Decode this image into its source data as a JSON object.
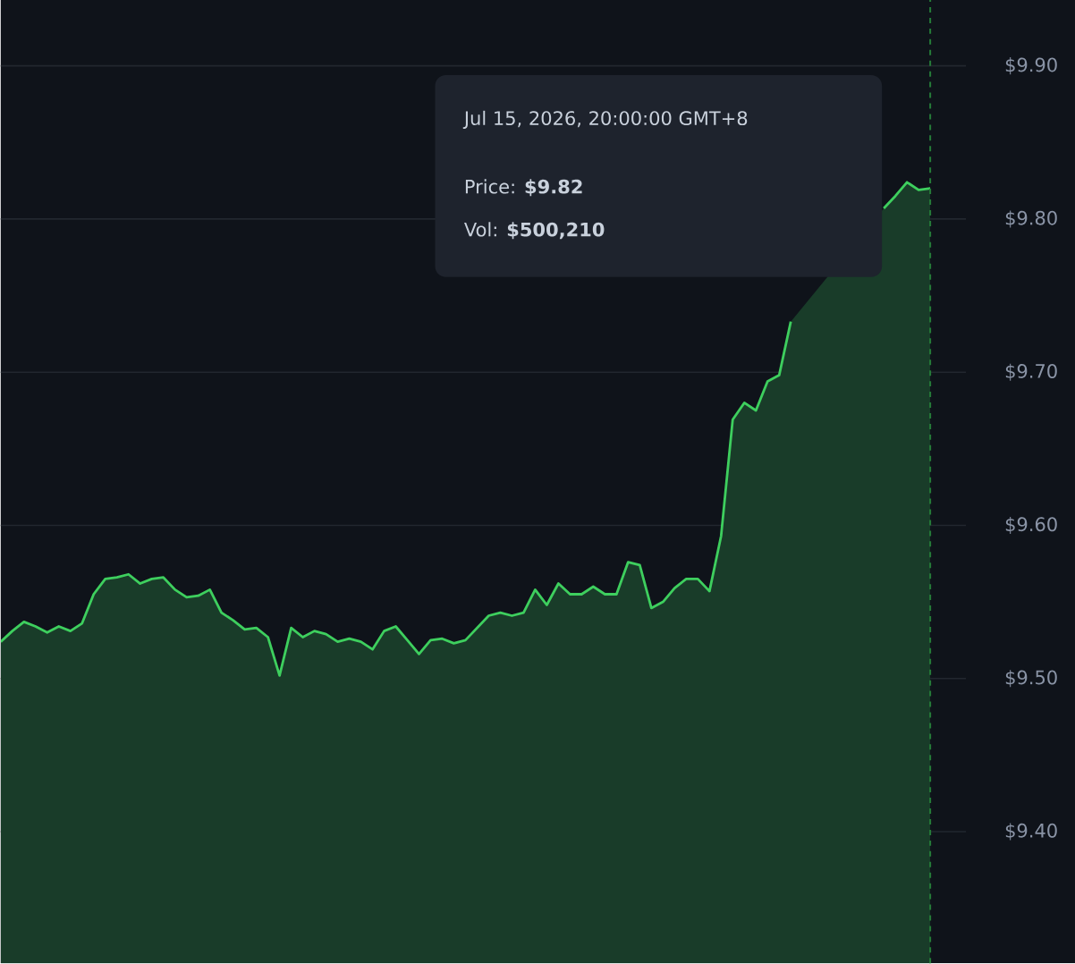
{
  "chart_data": {
    "type": "area",
    "categories": [
      null,
      null,
      null,
      null,
      null,
      null,
      null,
      null,
      null,
      null,
      null,
      null,
      null,
      null,
      null,
      null,
      null,
      null,
      null,
      null,
      null,
      null,
      null,
      null,
      null,
      null,
      null,
      null,
      null,
      null,
      null,
      null,
      null,
      null,
      null,
      null,
      null,
      null,
      null,
      null,
      null,
      null,
      null,
      null,
      null,
      null,
      null,
      null,
      null,
      null,
      null,
      null,
      null,
      null,
      null,
      null,
      null,
      null,
      null,
      null,
      null,
      null,
      null,
      null,
      null,
      null,
      null,
      null,
      null,
      null,
      null,
      null,
      null,
      null,
      null,
      null,
      null,
      null,
      null,
      null,
      null
    ],
    "series": [
      {
        "color": "#3ecf5e",
        "values": [
          9.524,
          9.531,
          9.537,
          9.534,
          9.53,
          9.534,
          9.531,
          9.536,
          9.555,
          9.565,
          9.566,
          9.568,
          9.562,
          9.565,
          9.566,
          9.558,
          9.553,
          9.554,
          9.558,
          9.543,
          9.538,
          9.532,
          9.533,
          9.527,
          9.502,
          9.533,
          9.527,
          9.531,
          9.529,
          9.524,
          9.526,
          9.524,
          9.519,
          9.531,
          9.534,
          9.525,
          9.516,
          9.525,
          9.526,
          9.523,
          9.525,
          9.533,
          9.541,
          9.543,
          9.541,
          9.543,
          9.558,
          9.548,
          9.562,
          9.555,
          9.555,
          9.56,
          9.555,
          9.555,
          9.576,
          9.574,
          9.546,
          9.55,
          9.559,
          9.565,
          9.565,
          9.557,
          9.593,
          9.669,
          9.68,
          9.675,
          9.694,
          9.698,
          9.733,
          null,
          null,
          null,
          null,
          null,
          null,
          null,
          9.807,
          9.815,
          9.824,
          9.819,
          9.82
        ]
      }
    ],
    "ylim": [
      9.314,
      9.943
    ],
    "yticks": [
      {
        "value": 9.4,
        "label": "$9.40"
      },
      {
        "value": 9.5,
        "label": "$9.50"
      },
      {
        "value": 9.6,
        "label": "$9.60"
      },
      {
        "value": 9.7,
        "label": "$9.70"
      },
      {
        "value": 9.8,
        "label": "$9.80"
      },
      {
        "value": 9.9,
        "label": "$9.90"
      }
    ],
    "grid": "y",
    "annotations": [
      "Jul 15, 2026, 20:00:00 GMT+8",
      "Price: **$9.82**",
      "Vol: **$500,210**"
    ]
  }
}
